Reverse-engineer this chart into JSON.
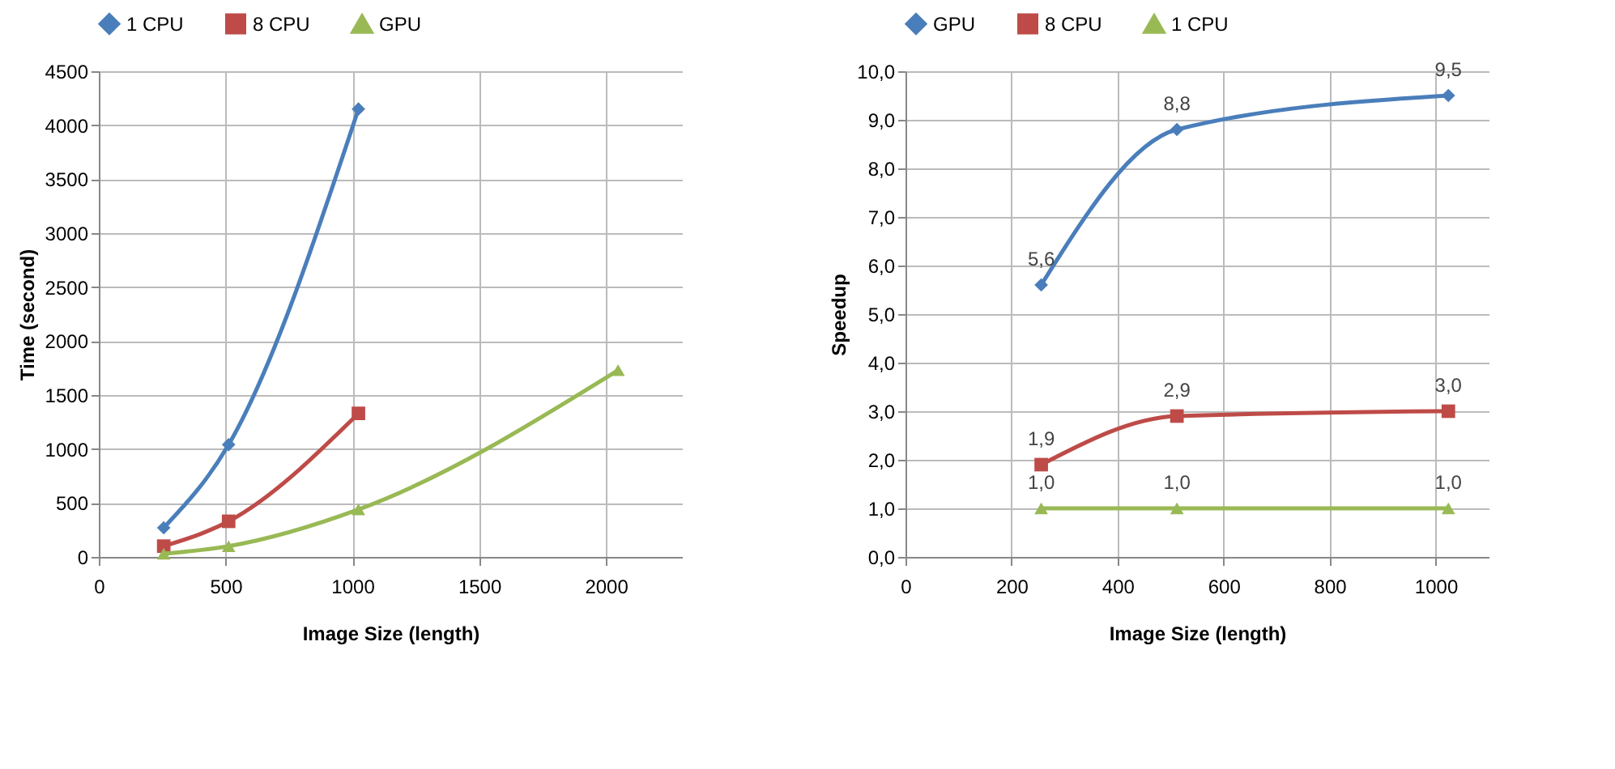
{
  "chart_data": [
    {
      "type": "line",
      "xlabel": "Image Size (length)",
      "ylabel": "Time (second)",
      "xlim": [
        0,
        2300
      ],
      "xticks": [
        0,
        500,
        1000,
        1500,
        2000
      ],
      "ylim": [
        0,
        4500
      ],
      "yticks": [
        0,
        500,
        1000,
        1500,
        2000,
        2500,
        3000,
        3500,
        4000,
        4500
      ],
      "grid": true,
      "legend": "top",
      "series": [
        {
          "name": "1 CPU",
          "color": "#4a7ebb",
          "marker": "diamond",
          "x": [
            256,
            512,
            1024
          ],
          "values": [
            270,
            1040,
            4150
          ]
        },
        {
          "name": "8 CPU",
          "color": "#be4b48",
          "marker": "square",
          "x": [
            256,
            512,
            1024
          ],
          "values": [
            100,
            330,
            1330
          ]
        },
        {
          "name": "GPU",
          "color": "#98b954",
          "marker": "triangle",
          "x": [
            256,
            512,
            1024,
            2048
          ],
          "values": [
            30,
            100,
            440,
            1730
          ]
        }
      ]
    },
    {
      "type": "line",
      "xlabel": "Image Size (length)",
      "ylabel": "Speedup",
      "xlim": [
        0,
        1100
      ],
      "xticks": [
        0,
        200,
        400,
        600,
        800,
        1000
      ],
      "ylim": [
        0,
        10
      ],
      "yticks": [
        {
          "value": 0,
          "label": "0,0"
        },
        {
          "value": 1,
          "label": "1,0"
        },
        {
          "value": 2,
          "label": "2,0"
        },
        {
          "value": 3,
          "label": "3,0"
        },
        {
          "value": 4,
          "label": "4,0"
        },
        {
          "value": 5,
          "label": "5,0"
        },
        {
          "value": 6,
          "label": "6,0"
        },
        {
          "value": 7,
          "label": "7,0"
        },
        {
          "value": 8,
          "label": "8,0"
        },
        {
          "value": 9,
          "label": "9,0"
        },
        {
          "value": 10,
          "label": "10,0"
        }
      ],
      "grid": true,
      "legend": "top",
      "series": [
        {
          "name": "GPU",
          "color": "#4a7ebb",
          "marker": "diamond",
          "x": [
            256,
            512,
            1024
          ],
          "values": [
            5.6,
            8.8,
            9.5
          ],
          "value_labels": [
            "5,6",
            "8,8",
            "9,5"
          ]
        },
        {
          "name": "8 CPU",
          "color": "#be4b48",
          "marker": "square",
          "x": [
            256,
            512,
            1024
          ],
          "values": [
            1.9,
            2.9,
            3.0
          ],
          "value_labels": [
            "1,9",
            "2,9",
            "3,0"
          ]
        },
        {
          "name": "1 CPU",
          "color": "#98b954",
          "marker": "triangle",
          "x": [
            256,
            512,
            1024
          ],
          "values": [
            1.0,
            1.0,
            1.0
          ],
          "value_labels": [
            "1,0",
            "1,0",
            "1,0"
          ]
        }
      ]
    }
  ]
}
